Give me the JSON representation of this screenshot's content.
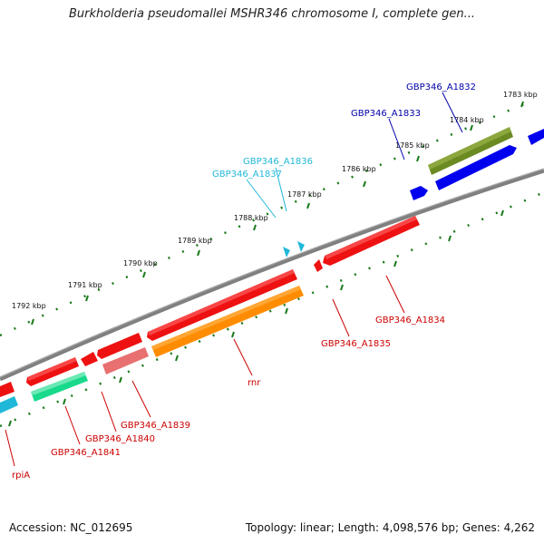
{
  "header": {
    "title": "Burkholderia pseudomallei MSHR346 chromosome I, complete gen..."
  },
  "footer": {
    "accession": "Accession: NC_012695",
    "stats": "Topology: linear; Length: 4,098,576 bp; Genes: 4,262"
  },
  "scale_labels": [
    "1783 kbp",
    "1784 kbp",
    "1785 kbp",
    "1786 kbp",
    "1787 kbp",
    "1788 kbp",
    "1789 kbp",
    "1790 kbp",
    "1791 kbp",
    "1792 kbp"
  ],
  "colors": {
    "red": "#ee1111",
    "red_dark": "#bb0000",
    "orange": "#ff8c00",
    "pink": "#e87070",
    "green_teal": "#19d98c",
    "cyan": "#20b8d8",
    "olive": "#6b8a22",
    "blue": "#0000ee",
    "backbone": "#808080",
    "tick_green": "#1a7a1a",
    "label_red": "#cc0000",
    "label_cyan": "#20b8d8",
    "label_blue": "#0000aa"
  },
  "gene_labels": {
    "a1832": "GBP346_A1832",
    "a1833": "GBP346_A1833",
    "a1836": "GBP346_A1836",
    "a1837": "GBP346_A1837",
    "a1834": "GBP346_A1834",
    "a1835": "GBP346_A1835",
    "rnr": "rnr",
    "a1839": "GBP346_A1839",
    "a1840": "GBP346_A1840",
    "a1841": "GBP346_A1841",
    "rpiA": "rpiA"
  }
}
